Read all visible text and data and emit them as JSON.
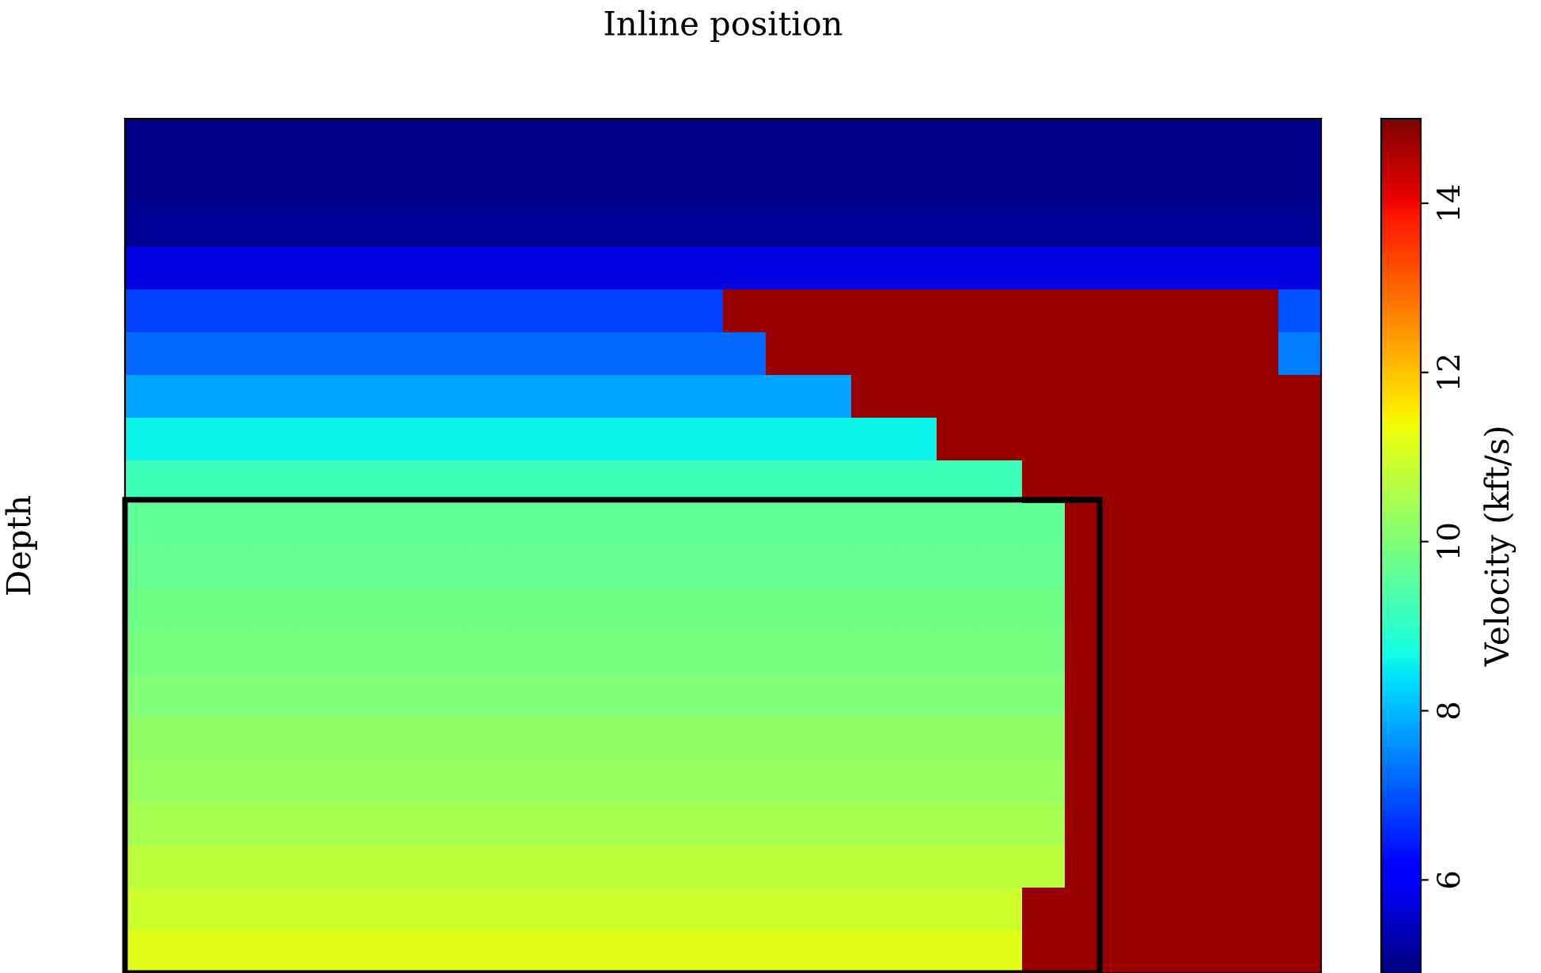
{
  "chart_data": {
    "type": "heatmap",
    "xlabel": "Inline position",
    "ylabel": "Depth",
    "clabel": "Velocity (kft/s)",
    "categories": [
      null,
      null,
      null,
      null,
      null,
      null,
      null,
      null,
      null,
      null,
      null,
      null,
      null,
      null,
      null,
      null,
      null,
      null,
      null,
      null,
      null,
      null,
      null,
      null,
      null,
      null,
      null,
      null
    ],
    "y_categories": [
      null,
      null,
      null,
      null,
      null,
      null,
      null,
      null,
      null,
      null,
      null,
      null,
      null,
      null,
      null,
      null,
      null,
      null,
      null,
      null
    ],
    "cells": [
      [
        5.0,
        5.0,
        5.0,
        5.0,
        5.0,
        5.0,
        5.0,
        5.0,
        5.0,
        5.0,
        5.0,
        5.0,
        5.0,
        5.0,
        5.0,
        5.0,
        5.0,
        5.0,
        5.0,
        5.0,
        5.0,
        5.0,
        5.0,
        5.0,
        5.0,
        5.0,
        5.0,
        5.0
      ],
      [
        5.0,
        5.0,
        5.0,
        5.0,
        5.0,
        5.0,
        5.0,
        5.0,
        5.0,
        5.0,
        5.0,
        5.0,
        5.0,
        5.0,
        5.0,
        5.0,
        5.0,
        5.0,
        5.0,
        5.0,
        5.0,
        5.0,
        5.0,
        5.0,
        5.0,
        5.0,
        5.0,
        5.0
      ],
      [
        5.1,
        5.1,
        5.1,
        5.1,
        5.1,
        5.1,
        5.1,
        5.1,
        5.1,
        5.1,
        5.1,
        5.1,
        5.1,
        5.1,
        5.1,
        5.1,
        5.1,
        5.1,
        5.1,
        5.1,
        5.1,
        5.1,
        5.1,
        5.1,
        5.1,
        5.1,
        5.1,
        5.1
      ],
      [
        5.8,
        5.8,
        5.8,
        5.8,
        5.8,
        5.8,
        5.8,
        5.8,
        5.8,
        5.8,
        5.8,
        5.8,
        5.8,
        5.8,
        5.8,
        5.8,
        5.8,
        5.8,
        5.8,
        5.8,
        5.8,
        5.8,
        5.8,
        5.8,
        5.8,
        5.8,
        5.8,
        5.8
      ],
      [
        6.8,
        6.8,
        6.8,
        6.8,
        6.8,
        6.8,
        6.8,
        6.8,
        6.8,
        6.8,
        6.8,
        6.8,
        6.8,
        6.8,
        14.8,
        14.8,
        14.8,
        14.8,
        14.8,
        14.8,
        14.8,
        14.8,
        14.8,
        14.8,
        14.8,
        14.8,
        14.8,
        7.0
      ],
      [
        7.2,
        7.2,
        7.2,
        7.2,
        7.2,
        7.2,
        7.2,
        7.2,
        7.2,
        7.2,
        7.2,
        7.2,
        7.2,
        7.2,
        7.2,
        14.8,
        14.8,
        14.8,
        14.8,
        14.8,
        14.8,
        14.8,
        14.8,
        14.8,
        14.8,
        14.8,
        14.8,
        7.4
      ],
      [
        7.8,
        7.8,
        7.8,
        7.8,
        7.8,
        7.8,
        7.8,
        7.8,
        7.8,
        7.8,
        7.8,
        7.8,
        7.8,
        7.8,
        7.8,
        7.8,
        7.8,
        14.8,
        14.8,
        14.8,
        14.8,
        14.8,
        14.8,
        14.8,
        14.8,
        14.8,
        14.8,
        14.8
      ],
      [
        8.6,
        8.6,
        8.6,
        8.6,
        8.6,
        8.6,
        8.6,
        8.6,
        8.6,
        8.6,
        8.6,
        8.6,
        8.6,
        8.6,
        8.6,
        8.6,
        8.6,
        8.6,
        8.6,
        14.8,
        14.8,
        14.8,
        14.8,
        14.8,
        14.8,
        14.8,
        14.8,
        14.8
      ],
      [
        9.2,
        9.2,
        9.2,
        9.2,
        9.2,
        9.2,
        9.2,
        9.2,
        9.2,
        9.2,
        9.2,
        9.2,
        9.2,
        9.2,
        9.2,
        9.2,
        9.2,
        9.2,
        9.2,
        9.2,
        9.2,
        14.8,
        14.8,
        14.8,
        14.8,
        14.8,
        14.8,
        14.8
      ],
      [
        9.6,
        9.6,
        9.6,
        9.6,
        9.6,
        9.6,
        9.6,
        9.6,
        9.6,
        9.6,
        9.6,
        9.6,
        9.6,
        9.6,
        9.6,
        9.6,
        9.6,
        9.6,
        9.6,
        9.6,
        9.6,
        9.6,
        14.8,
        14.8,
        14.8,
        14.8,
        14.8,
        14.8
      ],
      [
        9.7,
        9.7,
        9.7,
        9.7,
        9.7,
        9.7,
        9.7,
        9.7,
        9.7,
        9.7,
        9.7,
        9.7,
        9.7,
        9.7,
        9.7,
        9.7,
        9.7,
        9.7,
        9.7,
        9.7,
        9.7,
        9.7,
        14.8,
        14.8,
        14.8,
        14.8,
        14.8,
        14.8
      ],
      [
        9.8,
        9.8,
        9.8,
        9.8,
        9.8,
        9.8,
        9.8,
        9.8,
        9.8,
        9.8,
        9.8,
        9.8,
        9.8,
        9.8,
        9.8,
        9.8,
        9.8,
        9.8,
        9.8,
        9.8,
        9.8,
        9.8,
        14.8,
        14.8,
        14.8,
        14.8,
        14.8,
        14.8
      ],
      [
        9.9,
        9.9,
        9.9,
        9.9,
        9.9,
        9.9,
        9.9,
        9.9,
        9.9,
        9.9,
        9.9,
        9.9,
        9.9,
        9.9,
        9.9,
        9.9,
        9.9,
        9.9,
        9.9,
        9.9,
        9.9,
        9.9,
        14.8,
        14.8,
        14.8,
        14.8,
        14.8,
        14.8
      ],
      [
        10.0,
        10.0,
        10.0,
        10.0,
        10.0,
        10.0,
        10.0,
        10.0,
        10.0,
        10.0,
        10.0,
        10.0,
        10.0,
        10.0,
        10.0,
        10.0,
        10.0,
        10.0,
        10.0,
        10.0,
        10.0,
        10.0,
        14.8,
        14.8,
        14.8,
        14.8,
        14.8,
        14.8
      ],
      [
        10.2,
        10.2,
        10.2,
        10.2,
        10.2,
        10.2,
        10.2,
        10.2,
        10.2,
        10.2,
        10.2,
        10.2,
        10.2,
        10.2,
        10.2,
        10.2,
        10.2,
        10.2,
        10.2,
        10.2,
        10.2,
        10.2,
        14.8,
        14.8,
        14.8,
        14.8,
        14.8,
        14.8
      ],
      [
        10.3,
        10.3,
        10.3,
        10.3,
        10.3,
        10.3,
        10.3,
        10.3,
        10.3,
        10.3,
        10.3,
        10.3,
        10.3,
        10.3,
        10.3,
        10.3,
        10.3,
        10.3,
        10.3,
        10.3,
        10.3,
        10.3,
        14.8,
        14.8,
        14.8,
        14.8,
        14.8,
        14.8
      ],
      [
        10.5,
        10.5,
        10.5,
        10.5,
        10.5,
        10.5,
        10.5,
        10.5,
        10.5,
        10.5,
        10.5,
        10.5,
        10.5,
        10.5,
        10.5,
        10.5,
        10.5,
        10.5,
        10.5,
        10.5,
        10.5,
        10.5,
        14.8,
        14.8,
        14.8,
        14.8,
        14.8,
        14.8
      ],
      [
        10.7,
        10.7,
        10.7,
        10.7,
        10.7,
        10.7,
        10.7,
        10.7,
        10.7,
        10.7,
        10.7,
        10.7,
        10.7,
        10.7,
        10.7,
        10.7,
        10.7,
        10.7,
        10.7,
        10.7,
        10.7,
        10.7,
        14.8,
        14.8,
        14.8,
        14.8,
        14.8,
        14.8
      ],
      [
        10.9,
        10.9,
        10.9,
        10.9,
        10.9,
        10.9,
        10.9,
        10.9,
        10.9,
        10.9,
        10.9,
        10.9,
        10.9,
        10.9,
        10.9,
        10.9,
        10.9,
        10.9,
        10.9,
        10.9,
        10.9,
        14.8,
        14.8,
        14.8,
        14.8,
        14.8,
        14.8,
        14.8
      ],
      [
        11.2,
        11.2,
        11.2,
        11.2,
        11.2,
        11.2,
        11.2,
        11.2,
        11.2,
        11.2,
        11.2,
        11.2,
        11.2,
        11.2,
        11.2,
        11.2,
        11.2,
        11.2,
        11.2,
        11.2,
        11.2,
        14.8,
        14.8,
        14.8,
        14.8,
        14.8,
        14.8,
        14.8
      ]
    ],
    "clim": [
      4.9,
      15.0
    ],
    "cticks": [
      6,
      8,
      10,
      12,
      14
    ],
    "tick_labels": false
  }
}
